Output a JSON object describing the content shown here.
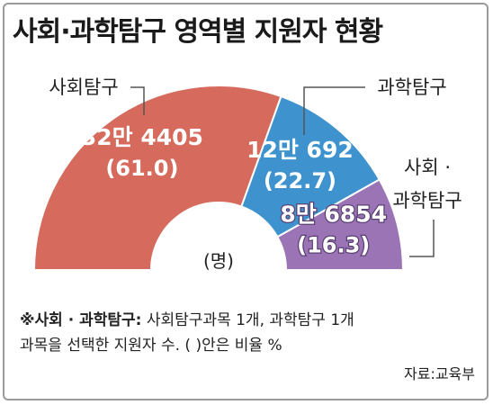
{
  "title": "사회·과학탐구 영역별 지원자 현황",
  "chart_data": {
    "type": "pie",
    "variant": "half-donut",
    "unit": "(명)",
    "slices": [
      {
        "label": "사회탐구",
        "value": 324405,
        "value_text": "32만 4405",
        "percent": 61.0,
        "percent_text": "(61.0)",
        "color": "#d66b5d"
      },
      {
        "label": "과학탐구",
        "value": 120692,
        "value_text": "12만 692",
        "percent": 22.7,
        "percent_text": "(22.7)",
        "color": "#3e93cf"
      },
      {
        "label": "사회·과학탐구",
        "label_lines": [
          "사회 ·",
          "과학탐구"
        ],
        "value": 86854,
        "value_text": "8만 6854",
        "percent": 16.3,
        "percent_text": "(16.3)",
        "color": "#9b74b5"
      }
    ]
  },
  "note": {
    "lead": "※사회 · 과학탐구:",
    "line1": " 사회탐구과목 1개, 과학탐구 1개",
    "line2": "과목을 선택한 지원자 수. (   )안은 비율 %"
  },
  "source": "자료:교육부"
}
